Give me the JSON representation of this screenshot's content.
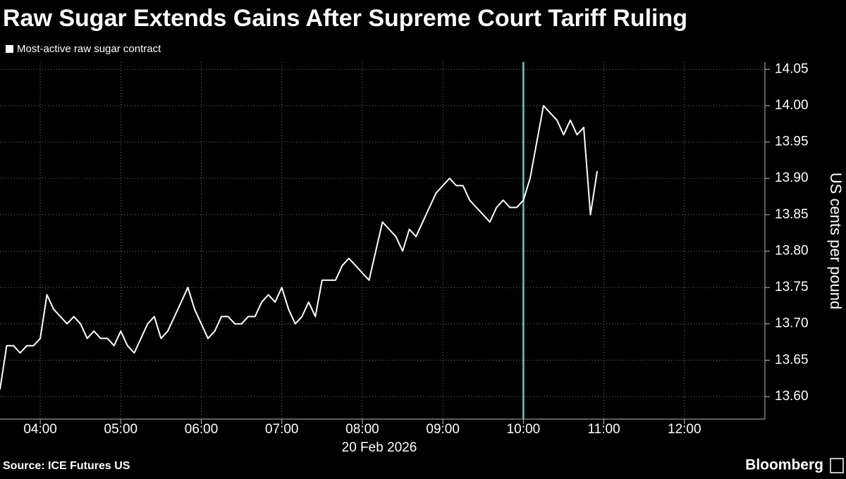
{
  "chart_data": {
    "type": "line",
    "title": "Raw Sugar Extends Gains After Supreme Court Tariff Ruling",
    "y_label": "US cents per pound",
    "date_label": "20 Feb 2026",
    "source": "Source: ICE Futures US",
    "brand": "Bloomberg",
    "x": [
      "03:30",
      "03:35",
      "03:40",
      "03:45",
      "03:50",
      "03:55",
      "04:00",
      "04:05",
      "04:10",
      "04:15",
      "04:20",
      "04:25",
      "04:30",
      "04:35",
      "04:40",
      "04:45",
      "04:50",
      "04:55",
      "05:00",
      "05:05",
      "05:10",
      "05:15",
      "05:20",
      "05:25",
      "05:30",
      "05:35",
      "05:40",
      "05:45",
      "05:50",
      "05:55",
      "06:00",
      "06:05",
      "06:10",
      "06:15",
      "06:20",
      "06:25",
      "06:30",
      "06:35",
      "06:40",
      "06:45",
      "06:50",
      "06:55",
      "07:00",
      "07:05",
      "07:10",
      "07:15",
      "07:20",
      "07:25",
      "07:30",
      "07:35",
      "07:40",
      "07:45",
      "07:50",
      "07:55",
      "08:00",
      "08:05",
      "08:10",
      "08:15",
      "08:20",
      "08:25",
      "08:30",
      "08:35",
      "08:40",
      "08:45",
      "08:50",
      "08:55",
      "09:00",
      "09:05",
      "09:10",
      "09:15",
      "09:20",
      "09:25",
      "09:30",
      "09:35",
      "09:40",
      "09:45",
      "09:50",
      "09:55",
      "10:00",
      "10:05",
      "10:10",
      "10:15",
      "10:20",
      "10:25",
      "10:30",
      "10:35",
      "10:40",
      "10:45",
      "10:50",
      "10:55"
    ],
    "series": [
      {
        "name": "Most-active raw sugar contract",
        "color": "#ffffff",
        "values": [
          13.61,
          13.67,
          13.67,
          13.66,
          13.67,
          13.67,
          13.68,
          13.74,
          13.72,
          13.71,
          13.7,
          13.71,
          13.7,
          13.68,
          13.69,
          13.68,
          13.68,
          13.67,
          13.69,
          13.67,
          13.66,
          13.68,
          13.7,
          13.71,
          13.68,
          13.69,
          13.71,
          13.73,
          13.75,
          13.72,
          13.7,
          13.68,
          13.69,
          13.71,
          13.71,
          13.7,
          13.7,
          13.71,
          13.71,
          13.73,
          13.74,
          13.73,
          13.75,
          13.72,
          13.7,
          13.71,
          13.73,
          13.71,
          13.76,
          13.76,
          13.76,
          13.78,
          13.79,
          13.78,
          13.77,
          13.76,
          13.8,
          13.84,
          13.83,
          13.82,
          13.8,
          13.83,
          13.82,
          13.84,
          13.86,
          13.88,
          13.89,
          13.9,
          13.89,
          13.89,
          13.87,
          13.86,
          13.85,
          13.84,
          13.86,
          13.87,
          13.86,
          13.86,
          13.87,
          13.9,
          13.95,
          14.0,
          13.99,
          13.98,
          13.96,
          13.98,
          13.96,
          13.97,
          13.85,
          13.91
        ]
      }
    ],
    "xlim": [
      "03:30",
      "13:00"
    ],
    "xticks": [
      "04:00",
      "05:00",
      "06:00",
      "07:00",
      "08:00",
      "09:00",
      "10:00",
      "11:00",
      "12:00"
    ],
    "ylim": [
      13.569,
      14.06
    ],
    "yticks": [
      {
        "value": 13.6,
        "label": "13.60"
      },
      13.65,
      {
        "value": 13.7,
        "label": "13.70"
      },
      13.75,
      {
        "value": 13.8,
        "label": "13.80"
      },
      13.85,
      {
        "value": 13.9,
        "label": "13.90"
      },
      13.95,
      {
        "value": 14,
        "label": "14.00"
      },
      14.05
    ],
    "marker_x": "10:00",
    "marker_color": "#5ec8c8",
    "grid": true
  }
}
